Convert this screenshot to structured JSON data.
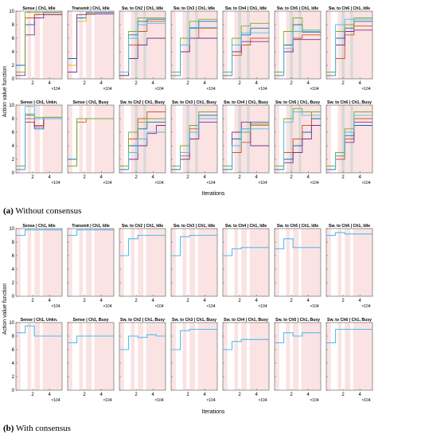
{
  "captions": {
    "a_label": "(a)",
    "a_text": "Without consensus",
    "b_label": "(b)",
    "b_text": "With consensus"
  },
  "chart_data": [
    {
      "type": "line",
      "group": "(a) Without consensus",
      "ylabel": "Action value function",
      "xlabel": "Iterations",
      "ylim": [
        0,
        10
      ],
      "xlim": [
        0,
        55000
      ],
      "x_ticks": [
        2,
        4
      ],
      "x_exponent": "×10^4",
      "y_ticks": [
        0,
        2,
        4,
        6,
        8,
        10
      ],
      "panels": [
        {
          "title": "Sense | Ch1, Idle",
          "series": [
            {
              "color": "#0072BD",
              "values": [
                2,
                8,
                9.5,
                9.8,
                9.8
              ]
            },
            {
              "color": "#D95319",
              "values": [
                1,
                9,
                9.5,
                9.5,
                9.5
              ]
            },
            {
              "color": "#7E2F8E",
              "values": [
                0.5,
                6.5,
                9,
                9.5,
                9.5
              ]
            },
            {
              "color": "#77AC30",
              "values": [
                1,
                9.8,
                9.8,
                9.8,
                9.8
              ]
            }
          ]
        },
        {
          "title": "Transmit | Ch1, Idle",
          "series": [
            {
              "color": "#0072BD",
              "values": [
                3,
                9,
                9.8,
                9.8,
                9.8
              ]
            },
            {
              "color": "#EDB120",
              "values": [
                2,
                8.5,
                9.5,
                9.6,
                9.6
              ]
            },
            {
              "color": "#7E2F8E",
              "values": [
                1,
                9.5,
                9.6,
                9.6,
                9.6
              ]
            }
          ]
        },
        {
          "title": "Sw. to Ch2 | Ch1, Idle",
          "series": [
            {
              "color": "#0072BD",
              "values": [
                1,
                6.5,
                8.5,
                8.8,
                8.8
              ]
            },
            {
              "color": "#D95319",
              "values": [
                0.5,
                5,
                7,
                8.5,
                8.5
              ]
            },
            {
              "color": "#7E2F8E",
              "values": [
                0.5,
                3,
                5,
                6,
                6
              ]
            },
            {
              "color": "#77AC30",
              "values": [
                1,
                7,
                9,
                9,
                9
              ]
            },
            {
              "color": "#4DBEEE",
              "values": [
                1,
                6,
                8,
                8.2,
                8.2
              ]
            }
          ]
        },
        {
          "title": "Sw. to Ch3 | Ch1, Idle",
          "series": [
            {
              "color": "#0072BD",
              "values": [
                1,
                5,
                7.5,
                8.5,
                8.5
              ]
            },
            {
              "color": "#D95319",
              "values": [
                0.5,
                4,
                6,
                7.5,
                7.5
              ]
            },
            {
              "color": "#7E2F8E",
              "values": [
                0.5,
                4,
                6,
                6,
                6
              ]
            },
            {
              "color": "#77AC30",
              "values": [
                1,
                6,
                8.5,
                8.8,
                8.8
              ]
            },
            {
              "color": "#4DBEEE",
              "values": [
                0.5,
                5,
                7.6,
                7.6,
                7.6
              ]
            }
          ]
        },
        {
          "title": "Sw. to Ch4 | Ch1, Idle",
          "series": [
            {
              "color": "#0072BD",
              "values": [
                1,
                4,
                6.5,
                7.5,
                7.5
              ]
            },
            {
              "color": "#D95319",
              "values": [
                0.5,
                3.5,
                5,
                6,
                6
              ]
            },
            {
              "color": "#7E2F8E",
              "values": [
                0.5,
                4,
                5.5,
                5.5,
                5.5
              ]
            },
            {
              "color": "#77AC30",
              "values": [
                1,
                6,
                7.8,
                8.2,
                8.2
              ]
            },
            {
              "color": "#4DBEEE",
              "values": [
                0.5,
                5,
                6.8,
                6.8,
                6.8
              ]
            }
          ]
        },
        {
          "title": "Sw. to Ch5 | Ch1, Idle",
          "series": [
            {
              "color": "#0072BD",
              "values": [
                1,
                5,
                8,
                6.9,
                6.9
              ]
            },
            {
              "color": "#D95319",
              "values": [
                0.5,
                4,
                6,
                6.5,
                6.5
              ]
            },
            {
              "color": "#7E2F8E",
              "values": [
                0.5,
                4,
                5.8,
                5.8,
                5.8
              ]
            },
            {
              "color": "#77AC30",
              "values": [
                1,
                7,
                9,
                7.2,
                7.2
              ]
            },
            {
              "color": "#4DBEEE",
              "values": [
                0.5,
                4.5,
                7,
                7,
                7
              ]
            }
          ]
        },
        {
          "title": "Sw. to Ch6 | Ch1, Idle",
          "series": [
            {
              "color": "#0072BD",
              "values": [
                1,
                6,
                7.5,
                8.5,
                8.5
              ]
            },
            {
              "color": "#D95319",
              "values": [
                0.5,
                3,
                6.5,
                7.8,
                7.8
              ]
            },
            {
              "color": "#7E2F8E",
              "values": [
                0.5,
                5,
                7,
                7.2,
                7.2
              ]
            },
            {
              "color": "#77AC30",
              "values": [
                1,
                7,
                8,
                9,
                9
              ]
            },
            {
              "color": "#4DBEEE",
              "values": [
                0.5,
                8,
                8.8,
                8.8,
                8.8
              ]
            }
          ]
        },
        {
          "title": "Sense | Ch1, Unkn.",
          "series": [
            {
              "color": "#0072BD",
              "values": [
                1,
                8.5,
                6.5,
                8,
                8
              ]
            },
            {
              "color": "#D95319",
              "values": [
                0.5,
                8,
                7,
                8.2,
                8.2
              ]
            },
            {
              "color": "#7E2F8E",
              "values": [
                0.5,
                7.5,
                6.8,
                8,
                8
              ]
            },
            {
              "color": "#77AC30",
              "values": [
                1,
                8.7,
                8.2,
                8.2,
                8.2
              ]
            },
            {
              "color": "#4DBEEE",
              "values": [
                0.5,
                9.8,
                8,
                8,
                8
              ]
            }
          ]
        },
        {
          "title": "Sense | Ch1, Busy",
          "series": [
            {
              "color": "#0072BD",
              "values": [
                2,
                8,
                8,
                8,
                8
              ]
            },
            {
              "color": "#D95319",
              "values": [
                1,
                7.5,
                8,
                8,
                8
              ]
            },
            {
              "color": "#77AC30",
              "values": [
                1,
                8,
                8,
                8,
                8
              ]
            }
          ]
        },
        {
          "title": "Sw. to Ch2 | Ch1, Busy",
          "series": [
            {
              "color": "#0072BD",
              "values": [
                0.5,
                4,
                6.5,
                7.5,
                7.5
              ]
            },
            {
              "color": "#D95319",
              "values": [
                0.5,
                5,
                8,
                9,
                9
              ]
            },
            {
              "color": "#7E2F8E",
              "values": [
                0.5,
                2,
                4,
                5.8,
                7
              ]
            },
            {
              "color": "#77AC30",
              "values": [
                1,
                6,
                7.5,
                8,
                8
              ]
            },
            {
              "color": "#4DBEEE",
              "values": [
                0.5,
                3,
                5,
                6,
                6
              ]
            }
          ]
        },
        {
          "title": "Sw. to Ch3 | Ch1, Busy",
          "series": [
            {
              "color": "#0072BD",
              "values": [
                0.5,
                3,
                6,
                8.5,
                8.5
              ]
            },
            {
              "color": "#D95319",
              "values": [
                0.5,
                2.5,
                6.5,
                8,
                8
              ]
            },
            {
              "color": "#7E2F8E",
              "values": [
                0.5,
                2,
                5,
                7.5,
                7.5
              ]
            },
            {
              "color": "#77AC30",
              "values": [
                1,
                4,
                7,
                9,
                9
              ]
            },
            {
              "color": "#4DBEEE",
              "values": [
                0.5,
                3,
                6,
                8,
                8
              ]
            }
          ]
        },
        {
          "title": "Sw. to Ch4 | Ch1, Busy",
          "series": [
            {
              "color": "#0072BD",
              "values": [
                0.5,
                5,
                6.5,
                7.5,
                7.5
              ]
            },
            {
              "color": "#D95319",
              "values": [
                0.5,
                3,
                4.5,
                7.2,
                7.2
              ]
            },
            {
              "color": "#7E2F8E",
              "values": [
                0.5,
                6,
                7.5,
                4,
                4
              ]
            },
            {
              "color": "#77AC30",
              "values": [
                1,
                4,
                6,
                7,
                7
              ]
            },
            {
              "color": "#4DBEEE",
              "values": [
                0.5,
                4,
                6.5,
                6.5,
                6.5
              ]
            }
          ]
        },
        {
          "title": "Sw. to Ch5 | Ch1, Busy",
          "series": [
            {
              "color": "#0072BD",
              "values": [
                0.5,
                2,
                4,
                6,
                8
              ]
            },
            {
              "color": "#D95319",
              "values": [
                0.5,
                3,
                5,
                7,
                9
              ]
            },
            {
              "color": "#7E2F8E",
              "values": [
                0.5,
                1.5,
                3,
                5,
                7
              ]
            },
            {
              "color": "#77AC30",
              "values": [
                1,
                8,
                9.5,
                9,
                9
              ]
            },
            {
              "color": "#4DBEEE",
              "values": [
                0.5,
                7.5,
                9,
                8.5,
                8.5
              ]
            }
          ]
        },
        {
          "title": "Sw. to Ch6 | Ch1, Busy",
          "series": [
            {
              "color": "#0072BD",
              "values": [
                0.5,
                3,
                5.5,
                7,
                7
              ]
            },
            {
              "color": "#D95319",
              "values": [
                0.5,
                2,
                5,
                8,
                8
              ]
            },
            {
              "color": "#7E2F8E",
              "values": [
                0.5,
                2.5,
                4.5,
                7.5,
                7.5
              ]
            },
            {
              "color": "#77AC30",
              "values": [
                1,
                3,
                6.5,
                9,
                9
              ]
            },
            {
              "color": "#4DBEEE",
              "values": [
                0.5,
                2.5,
                6,
                8.5,
                8.5
              ]
            }
          ]
        }
      ]
    },
    {
      "type": "line",
      "group": "(b) With consensus",
      "ylabel": "Action value function",
      "xlabel": "Iterations",
      "ylim": [
        0,
        10
      ],
      "xlim": [
        0,
        55000
      ],
      "x_ticks": [
        2,
        4
      ],
      "x_exponent": "×10^4",
      "y_ticks": [
        0,
        2,
        4,
        6,
        8,
        10
      ],
      "panels": [
        {
          "title": "Sense | Ch1, Idle",
          "series": [
            {
              "color": "#4DBEEE",
              "values": [
                9,
                9.8,
                9.8,
                9.8,
                9.8
              ]
            }
          ]
        },
        {
          "title": "Transmit | Ch1, Idle",
          "series": [
            {
              "color": "#4DBEEE",
              "values": [
                9,
                9.8,
                9.8,
                9.8,
                9.8
              ]
            }
          ]
        },
        {
          "title": "Sw. to Ch2 | Ch1, Idle",
          "series": [
            {
              "color": "#4DBEEE",
              "values": [
                6,
                8.5,
                9,
                9,
                9
              ]
            }
          ]
        },
        {
          "title": "Sw. to Ch3 | Ch1, Idle",
          "series": [
            {
              "color": "#4DBEEE",
              "values": [
                6,
                8.8,
                9,
                9,
                9
              ]
            }
          ]
        },
        {
          "title": "Sw. to Ch4 | Ch1, Idle",
          "series": [
            {
              "color": "#4DBEEE",
              "values": [
                6,
                7,
                7.2,
                7.2,
                7.2
              ]
            }
          ]
        },
        {
          "title": "Sw. to Ch5 | Ch1, Idle",
          "series": [
            {
              "color": "#4DBEEE",
              "values": [
                7,
                8.5,
                7.2,
                7.2,
                7.2
              ]
            }
          ]
        },
        {
          "title": "Sw. to Ch6 | Ch1, Idle",
          "series": [
            {
              "color": "#4DBEEE",
              "values": [
                9,
                9.4,
                9.2,
                9.2,
                9.2
              ]
            }
          ]
        },
        {
          "title": "Sense | Ch1, Unkn.",
          "series": [
            {
              "color": "#4DBEEE",
              "values": [
                8.5,
                9.5,
                8,
                8,
                8
              ]
            }
          ]
        },
        {
          "title": "Sense | Ch1, Busy",
          "series": [
            {
              "color": "#4DBEEE",
              "values": [
                7,
                8,
                8,
                8,
                8
              ]
            }
          ]
        },
        {
          "title": "Sw. to Ch2 | Ch1, Busy",
          "series": [
            {
              "color": "#4DBEEE",
              "values": [
                6,
                8,
                7.8,
                8.2,
                8
              ]
            }
          ]
        },
        {
          "title": "Sw. to Ch3 | Ch1, Busy",
          "series": [
            {
              "color": "#4DBEEE",
              "values": [
                6,
                8.8,
                9,
                9,
                9
              ]
            }
          ]
        },
        {
          "title": "Sw. to Ch4 | Ch1, Busy",
          "series": [
            {
              "color": "#4DBEEE",
              "values": [
                6,
                7.2,
                7.5,
                7.5,
                7.5
              ]
            }
          ]
        },
        {
          "title": "Sw. to Ch5 | Ch1, Busy",
          "series": [
            {
              "color": "#4DBEEE",
              "values": [
                7,
                8.5,
                8,
                8.5,
                8.5
              ]
            }
          ]
        },
        {
          "title": "Sw. to Ch6 | Ch1, Busy",
          "series": [
            {
              "color": "#4DBEEE",
              "values": [
                7,
                9,
                9,
                9,
                9
              ]
            }
          ]
        }
      ]
    }
  ]
}
